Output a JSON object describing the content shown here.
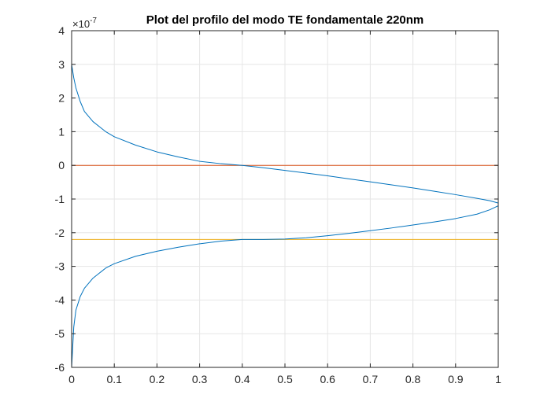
{
  "chart_data": {
    "type": "line",
    "title": "Plot del profilo del modo TE fondamentale 220nm",
    "xlabel": "",
    "ylabel": "",
    "xlim": [
      0,
      1
    ],
    "ylim": [
      -6e-07,
      4e-07
    ],
    "xticks": [
      "0",
      "0.1",
      "0.2",
      "0.3",
      "0.4",
      "0.5",
      "0.6",
      "0.7",
      "0.8",
      "0.9",
      "1"
    ],
    "yticks": [
      "-6",
      "-5",
      "-4",
      "-3",
      "-2",
      "-1",
      "0",
      "1",
      "2",
      "3",
      "4"
    ],
    "y_exponent_prefix": "×10",
    "y_exponent": "-7",
    "grid": true,
    "colors": {
      "profile": "#0072BD",
      "upper_line": "#D95319",
      "lower_line": "#EDB120"
    },
    "series": [
      {
        "x": [
          0.0,
          0.005,
          0.01,
          0.02,
          0.03,
          0.05,
          0.08,
          0.1,
          0.15,
          0.2,
          0.25,
          0.3,
          0.35,
          0.4,
          0.45,
          0.5,
          0.55,
          0.6,
          0.65,
          0.7,
          0.75,
          0.8,
          0.85,
          0.9,
          0.95,
          0.98,
          1.0,
          1.0,
          0.98,
          0.95,
          0.9,
          0.85,
          0.8,
          0.75,
          0.7,
          0.65,
          0.6,
          0.55,
          0.5,
          0.45,
          0.4,
          0.35,
          0.3,
          0.25,
          0.2,
          0.15,
          0.1,
          0.08,
          0.05,
          0.03,
          0.02,
          0.01,
          0.005,
          0.0
        ],
        "y": [
          3e-07,
          2.6e-07,
          2.3e-07,
          1.9e-07,
          1.6e-07,
          1.3e-07,
          1e-07,
          8.5e-08,
          6e-08,
          4e-08,
          2.5e-08,
          1.2e-08,
          5e-09,
          0.0,
          -7e-09,
          -1.5e-08,
          -2.3e-08,
          -3.1e-08,
          -4e-08,
          -4.9e-08,
          -5.8e-08,
          -6.7e-08,
          -7.7e-08,
          -8.7e-08,
          -9.8e-08,
          -1.05e-07,
          -1.12e-07,
          -1.2e-07,
          -1.32e-07,
          -1.45e-07,
          -1.58e-07,
          -1.68e-07,
          -1.77e-07,
          -1.86e-07,
          -1.94e-07,
          -2.02e-07,
          -2.09e-07,
          -2.15e-07,
          -2.19e-07,
          -2.2e-07,
          -2.2e-07,
          -2.25e-07,
          -2.33e-07,
          -2.43e-07,
          -2.55e-07,
          -2.7e-07,
          -2.92e-07,
          -3.05e-07,
          -3.35e-07,
          -3.65e-07,
          -3.9e-07,
          -4.3e-07,
          -4.8e-07,
          -6e-07
        ]
      },
      {
        "y_const": 0.0
      },
      {
        "y_const": -2.2e-07
      }
    ]
  }
}
